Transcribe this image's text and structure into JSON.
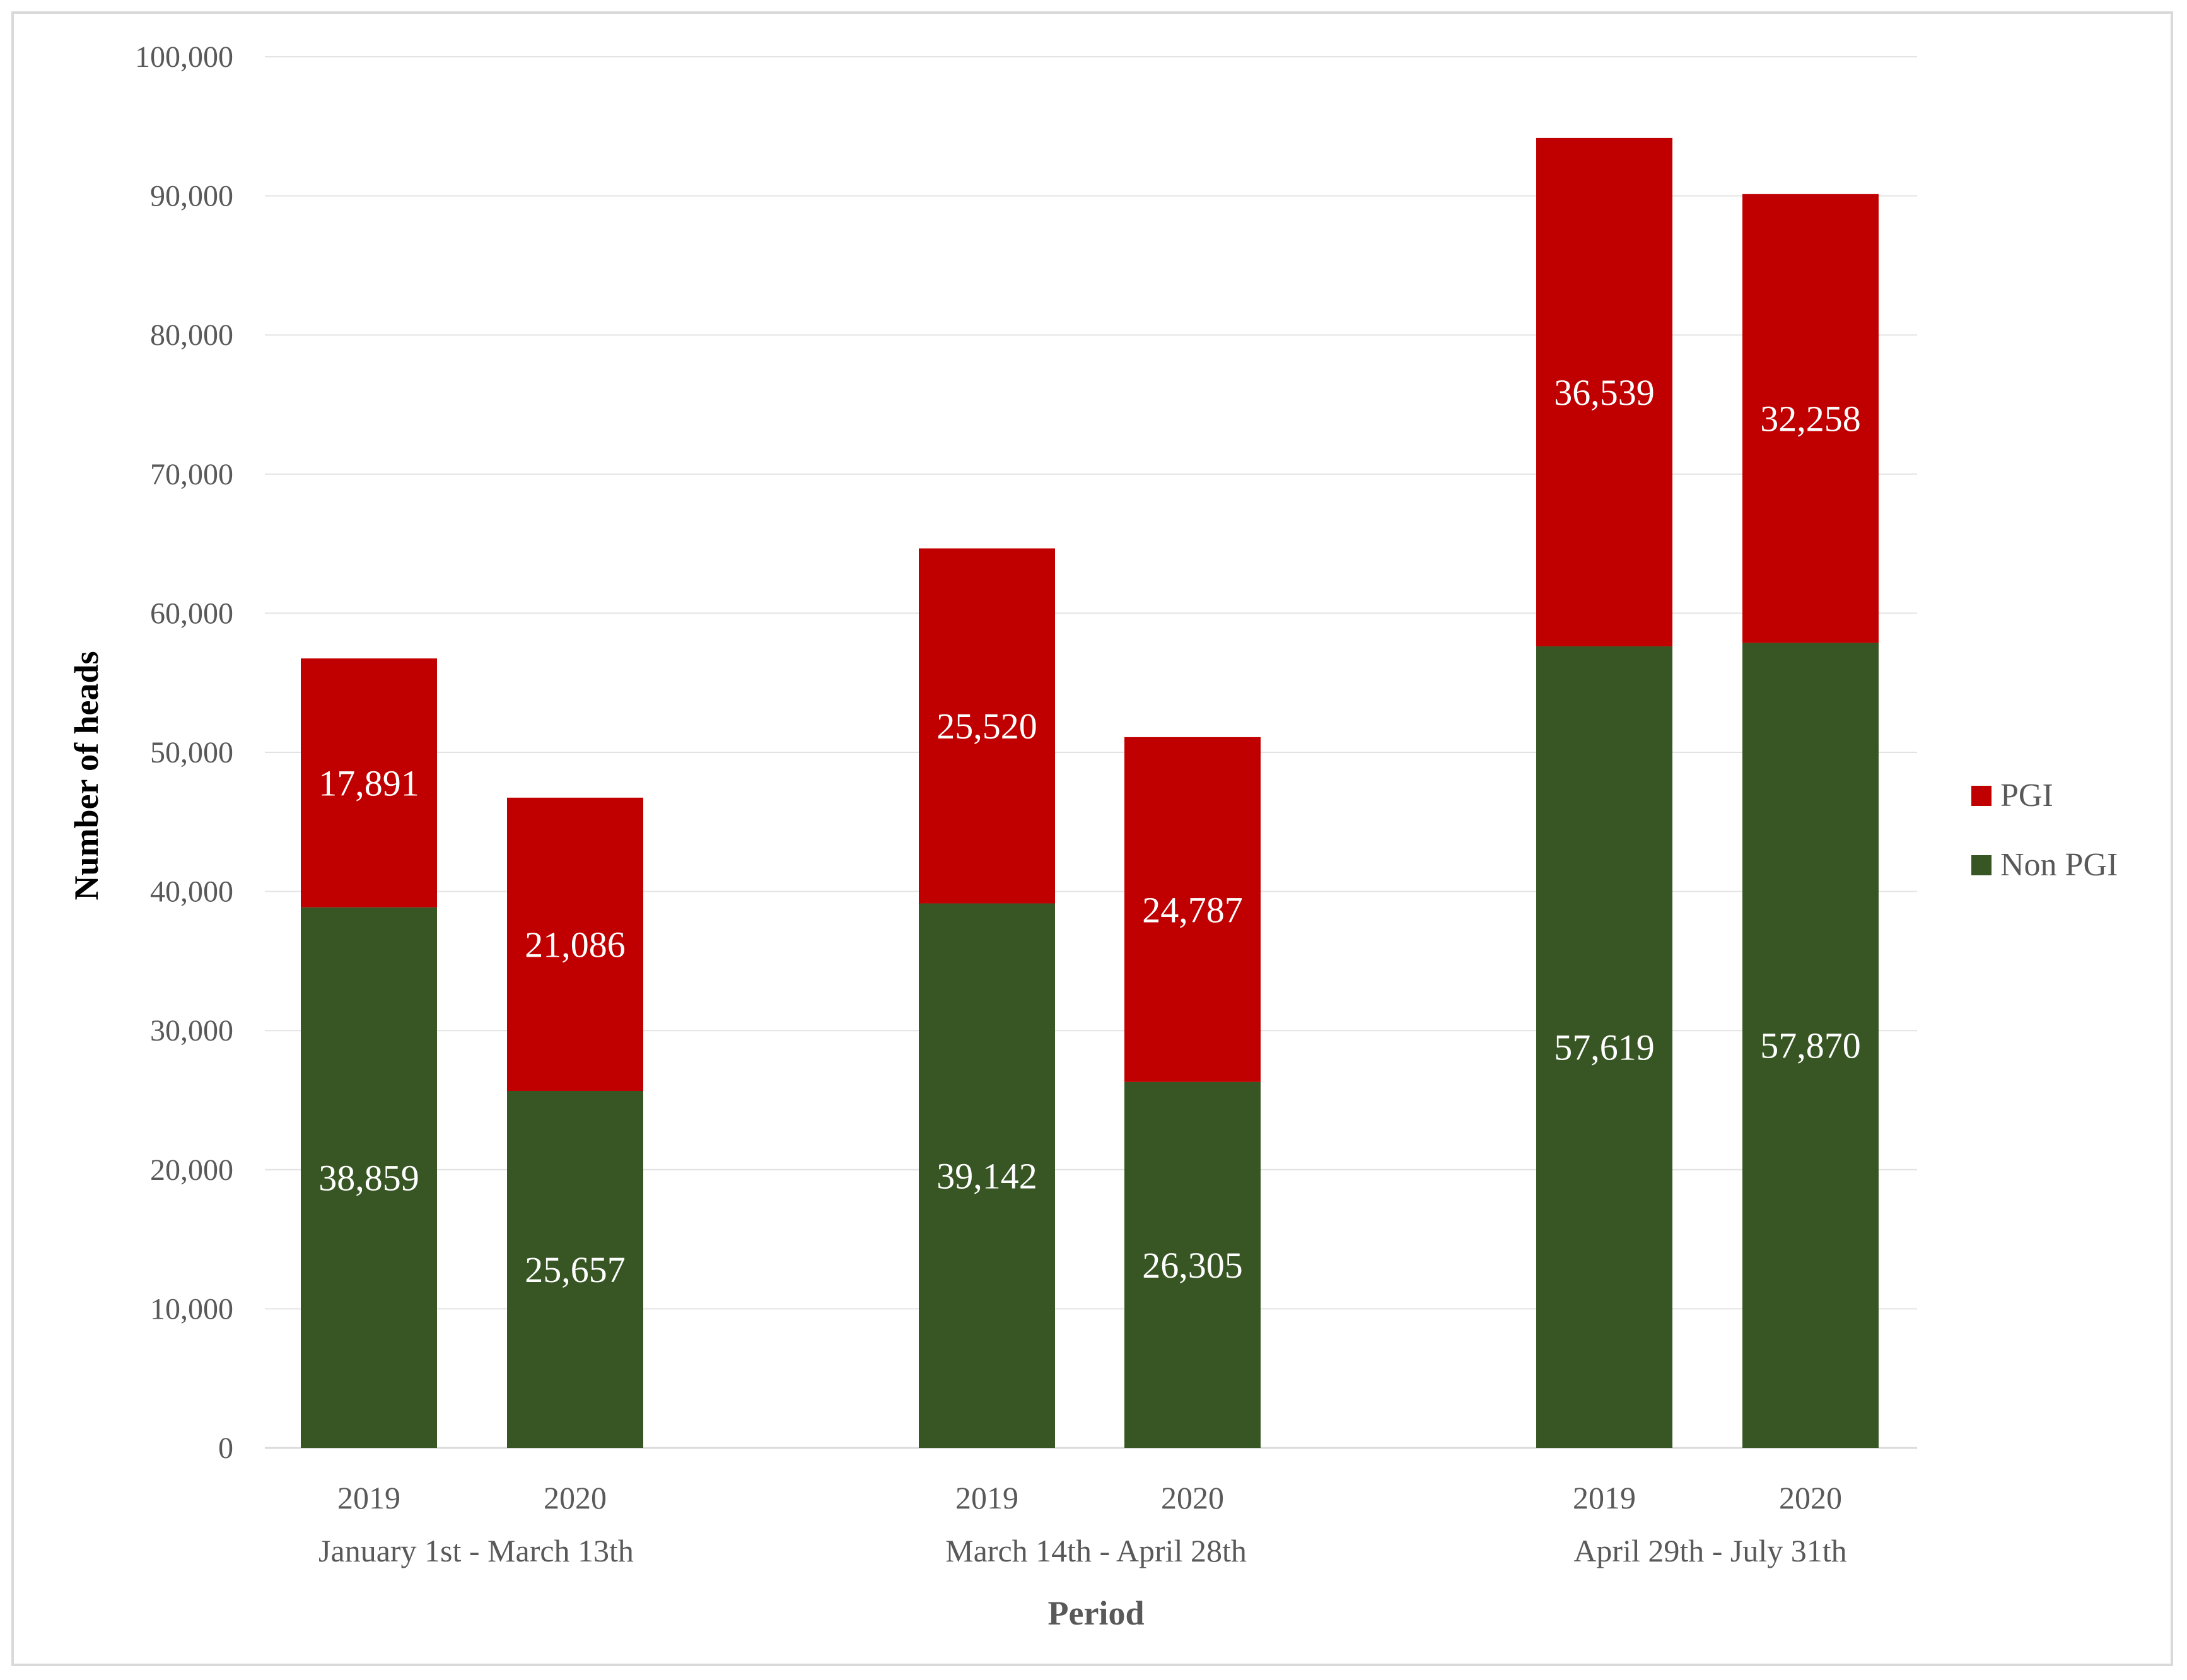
{
  "chart_data": {
    "type": "bar",
    "stacked": true,
    "title": "",
    "xlabel": "Period",
    "ylabel": "Number of heads",
    "ylim": [
      0,
      100000
    ],
    "yticks": [
      0,
      10000,
      20000,
      30000,
      40000,
      50000,
      60000,
      70000,
      80000,
      90000,
      100000
    ],
    "ytick_labels": [
      "0",
      "10,000",
      "20,000",
      "30,000",
      "40,000",
      "50,000",
      "60,000",
      "70,000",
      "80,000",
      "90,000",
      "100,000"
    ],
    "grid": true,
    "legend_position": "right",
    "groups": [
      {
        "label": "January 1st - March 13th",
        "categories": [
          "2019",
          "2020"
        ]
      },
      {
        "label": "March 14th - April 28th",
        "categories": [
          "2019",
          "2020"
        ]
      },
      {
        "label": "April 29th - July 31th",
        "categories": [
          "2019",
          "2020"
        ]
      }
    ],
    "series": [
      {
        "name": "Non PGI",
        "color": "#375623",
        "values": [
          38859,
          25657,
          39142,
          26305,
          57619,
          57870
        ],
        "labels": [
          "38,859",
          "25,657",
          "39,142",
          "26,305",
          "57,619",
          "57,870"
        ]
      },
      {
        "name": "PGI",
        "color": "#c00000",
        "values": [
          17891,
          21086,
          25520,
          24787,
          36539,
          32258
        ],
        "labels": [
          "17,891",
          "21,086",
          "25,520",
          "24,787",
          "36,539",
          "32,258"
        ]
      }
    ],
    "legend_order": [
      "PGI",
      "Non PGI"
    ]
  }
}
